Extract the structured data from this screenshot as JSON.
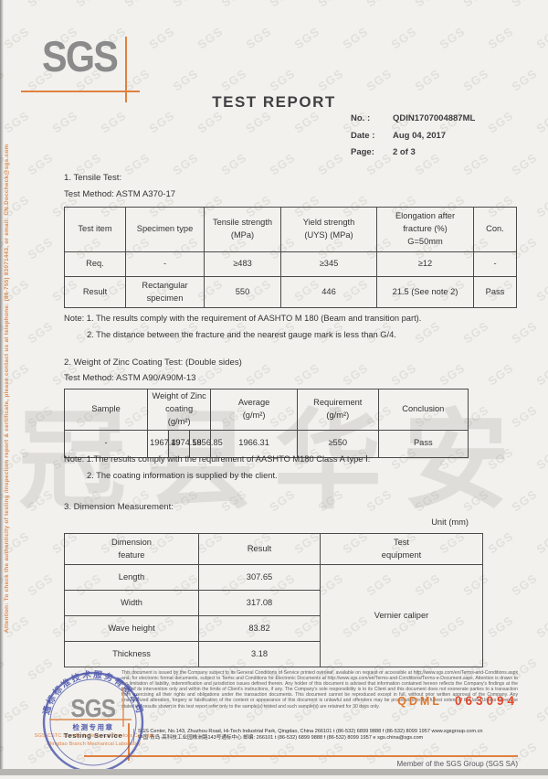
{
  "colors": {
    "accent_orange": "#e0813f",
    "stamp_blue": "#3f4a9f",
    "code_red": "#e2472a",
    "logo_gray": "#8b8b8b"
  },
  "watermark": {
    "tile": "SGS",
    "chinese": "冠县华安"
  },
  "side_note": "Attention: To check the authenticity of testing /inspection report & certificate, please contact us at telephone: (86-755) 83071443, or email: CN.Doccheck@sgs.com",
  "header": {
    "logo": "SGS",
    "title": "TEST REPORT",
    "no_label": "No.   :",
    "no_value": "QDIN1707004887ML",
    "date_label": "Date :",
    "date_value": "Aug 04, 2017",
    "page_label": "Page:",
    "page_value": "2 of 3"
  },
  "tensile": {
    "heading": "1. Tensile Test:",
    "method": "Test Method: ASTM A370-17",
    "headers": [
      "Test item",
      "Specimen type",
      "Tensile strength\n(MPa)",
      "Yield strength\n(UYS) (MPa)",
      "Elongation after\nfracture (%)\nG=50mm",
      "Con."
    ],
    "req_row": [
      "Req.",
      "-",
      "≥483",
      "≥345",
      "≥12",
      "-"
    ],
    "result_row": [
      "Result",
      "Rectangular\nspecimen",
      "550",
      "446",
      "21.5 (See note 2)",
      "Pass"
    ],
    "note1": "Note: 1. The results comply with the requirement of AASHTO M 180 (Beam and transition part).",
    "note2": "2. The distance between the fracture and the nearest gauge mark is less than G/4."
  },
  "zinc": {
    "heading": "2. Weight of Zinc Coating Test: (Double sides)",
    "method": "Test Method: ASTM A90/A90M-13",
    "h_sample": "Sample",
    "h_weight": "Weight of Zinc coating\n(g/m²)",
    "h_average": "Average\n(g/m²)",
    "h_requirement": "Requirement\n(g/m²)",
    "h_conclusion": "Conclusion",
    "row": [
      "-",
      "1967.49",
      "1974.58",
      "1956.85",
      "1966.31",
      "≥550",
      "Pass"
    ],
    "note1": "Note:  1.The results comply with the requirement of AASHTO M180 Class A type Ⅰ.",
    "note2": "2. The coating information is supplied by the client."
  },
  "dimension": {
    "heading": "3. Dimension Measurement:",
    "unit": "Unit (mm)",
    "h_feature": "Dimension\nfeature",
    "h_result": "Result",
    "h_equipment": "Test\nequipment",
    "rows": [
      {
        "feature": "Length",
        "result": "307.65"
      },
      {
        "feature": "Width",
        "result": "317.08"
      },
      {
        "feature": "Wave height",
        "result": "83.82"
      },
      {
        "feature": "Thickness",
        "result": "3.18"
      }
    ],
    "equipment": "Vernier caliper"
  },
  "stamp": {
    "ring_text": "通标标准技术服务有限公司",
    "logo": "SGS",
    "cn_label": "检测专用章",
    "en_label": "Testing Service",
    "company_line1": "SGS-CSTC Standards Technical Services Co., Ltd.",
    "company_line2": "Qingdao Branch Mechanical Laboratory"
  },
  "footer": {
    "disclaimer": "This document is issued by the Company subject to its General Conditions of Service printed overleaf, available on request or accessible at http://www.sgs.com/en/Terms-and-Conditions.aspx and, for electronic format documents, subject to Terms and Conditions for Electronic Documents at http://www.sgs.com/en/Terms-and-Conditions/Terms-e-Document.aspx. Attention is drawn to the limitation of liability, indemnification and jurisdiction issues defined therein. Any holder of this document is advised that information contained hereon reflects the Company's findings at the time of its intervention only and within the limits of Client's instructions, if any. The Company's sole responsibility is to its Client and this document does not exonerate parties to a transaction from exercising all their rights and obligations under the transaction documents. This document cannot be reproduced except in full, without prior written approval of the Company. Any unauthorized alteration, forgery or falsification of the content or appearance of this document is unlawful and offenders may be prosecuted to the fullest extent of the law. Unless otherwise stated the results shown in this test report refer only to the sample(s) tested and such sample(s) are retained for 30 days only.",
    "code_prefix": "QDML",
    "code_number": "063094",
    "address_en": "SGS Center, No.143, Zhuzhou Road, Hi-Tech Industrial Park, Qingdao, China  266101    t (86-532) 6899 9888    f (86-532) 8099 1957    www.sgsgroup.com.cn",
    "address_cn": "中国·青岛·高科技工业园株洲路143号通标中心    邮编: 266101    t (86-532) 6899 9888    f (86-532) 8099 1957    e  sgs.china@sgs.com",
    "member": "Member of the SGS Group (SGS SA)"
  }
}
